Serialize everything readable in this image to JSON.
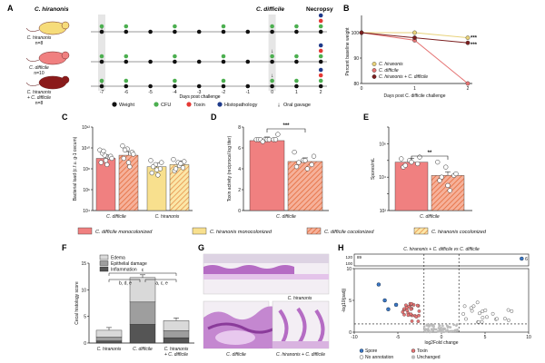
{
  "panels": {
    "A": {
      "letter": "A",
      "species1": "C. hiranonis",
      "species2": "C. difficile",
      "necropsy": "Necropsy",
      "groups": [
        {
          "name": "C. hiranonis",
          "n": "n=8"
        },
        {
          "name": "C. difficile",
          "n": "n=10"
        },
        {
          "name": "C. hiranonis + C. difficile",
          "n": "n=8"
        }
      ],
      "days": [
        "-7",
        "-6",
        "-5",
        "-4",
        "-3",
        "-2",
        "-1",
        "0",
        "1",
        "2"
      ],
      "xlabel": "Days post challenge",
      "legend": [
        "Weight",
        "CFU",
        "Toxin",
        "Histopathology",
        "Oral gavage"
      ],
      "colors": {
        "weight": "#111111",
        "cfu": "#4caf50",
        "toxin": "#e53935",
        "histo": "#1e3a8a"
      }
    },
    "B": {
      "letter": "B",
      "legend": [
        "C. hiranonis",
        "C. difficile",
        "C. hiranonis + C. difficile"
      ],
      "sig": "***"
    },
    "C": {
      "letter": "C"
    },
    "D": {
      "letter": "D",
      "sig": "***"
    },
    "E": {
      "letter": "E",
      "sig": "**"
    },
    "shared_legend": [
      "C. difficile monocolonized",
      "C. hiranonis monocolonized",
      "C. difficile cocolonized",
      "C. hiranonis cocolonized"
    ],
    "F": {
      "letter": "F",
      "legend": [
        "Edema",
        "Epithelial damage",
        "Inflammation"
      ],
      "ylabel": "Cecal histology score",
      "annot_top": "c",
      "annot_left": "b, d, e",
      "annot_right": "a, c, e",
      "groups": [
        "C. hiranonis",
        "C. difficile",
        "C. hiranonis + C. difficile"
      ]
    },
    "G": {
      "letter": "G",
      "captions": [
        "C. hiranonis",
        "C. difficile",
        "C. hiranonis + C. difficile"
      ]
    },
    "H": {
      "letter": "H",
      "title": "C. hiranonis + C. difficile vs C. difficile",
      "ylabel": "-log10(padj)",
      "xlabel": "log2Fold change",
      "yticks_top": [
        "120",
        "100"
      ],
      "axis_break_label": "89",
      "legend": [
        "Spore",
        "Toxin",
        "No annotation",
        "Unchanged"
      ],
      "point_label": "6"
    }
  },
  "chart_data": [
    {
      "panel": "B",
      "type": "line",
      "title": "",
      "xlabel": "Days post C. difficile challenge",
      "ylabel": "Percent baseline weight",
      "x": [
        0,
        1,
        2
      ],
      "xticks": [
        "0",
        "1",
        "2"
      ],
      "ylim": [
        80,
        105
      ],
      "yticks": [
        80,
        90,
        100
      ],
      "series": [
        {
          "name": "C. hiranonis",
          "color": "#e8d27a",
          "values": [
            100,
            100,
            98
          ]
        },
        {
          "name": "C. difficile",
          "color": "#e57373",
          "values": [
            100,
            97,
            80
          ]
        },
        {
          "name": "C. hiranonis + C. difficile",
          "color": "#7b1e1e",
          "values": [
            100,
            98,
            96
          ]
        }
      ]
    },
    {
      "panel": "C",
      "type": "bar",
      "ylabel": "Bacterial load (c.f.u. g-1 cecum)",
      "ylim_log10": [
        4,
        12
      ],
      "yticks": [
        "10⁴",
        "10⁶",
        "10⁸",
        "10¹⁰",
        "10¹²"
      ],
      "group_labels": [
        "C. difficile",
        "C. hiranonis"
      ],
      "series": [
        {
          "name": "C. difficile monocolonized",
          "group": "C. difficile",
          "log10_value": 9.0,
          "points": [
            9.8,
            9.3,
            9.1,
            8.6,
            8.8,
            9.2,
            9.5,
            8.4,
            9.0,
            9.7
          ]
        },
        {
          "name": "C. difficile cocolonized",
          "group": "C. difficile",
          "log10_value": 9.3,
          "points": [
            10.2,
            9.9,
            9.6,
            9.0,
            8.6,
            9.4,
            9.8,
            8.2
          ]
        },
        {
          "name": "C. hiranonis monocolonized",
          "group": "C. hiranonis",
          "log10_value": 8.2,
          "points": [
            8.8,
            8.4,
            8.0,
            7.6,
            7.9,
            8.6,
            8.2,
            7.4
          ]
        },
        {
          "name": "C. hiranonis cocolonized",
          "group": "C. hiranonis",
          "log10_value": 8.4,
          "points": [
            8.9,
            8.6,
            8.1,
            7.8,
            8.3,
            8.7,
            8.0,
            8.5
          ]
        }
      ]
    },
    {
      "panel": "D",
      "type": "bar",
      "ylabel": "Toxin activity (reciprocal log titer)",
      "ylim": [
        0,
        8
      ],
      "yticks": [
        "0",
        "2",
        "4",
        "6",
        "8"
      ],
      "group_label": "C. difficile",
      "series": [
        {
          "name": "C. difficile monocolonized",
          "value": 6.7,
          "points": [
            6.8,
            6.8,
            6.8,
            6.8,
            6.8,
            6.8,
            6.8,
            6.8,
            7.3,
            6.6
          ]
        },
        {
          "name": "C. difficile cocolonized",
          "value": 4.7,
          "points": [
            5.6,
            4.8,
            4.4,
            4.2,
            4.8,
            5.2,
            4.6,
            4.0
          ]
        }
      ]
    },
    {
      "panel": "E",
      "type": "bar",
      "ylabel": "Spores/mL",
      "ylim_log10": [
        2,
        7
      ],
      "yticks": [
        "10²",
        "10³",
        "10⁴",
        "10⁵",
        "10⁶",
        "10⁷"
      ],
      "group_label": "C. difficile",
      "series": [
        {
          "name": "C. difficile monocolonized",
          "log10_value": 4.9,
          "points": [
            5.1,
            5.0,
            4.8,
            4.6,
            4.9,
            5.2,
            4.7
          ]
        },
        {
          "name": "C. difficile cocolonized",
          "log10_value": 4.1,
          "points": [
            4.9,
            4.6,
            4.1,
            3.8,
            3.5,
            4.2,
            4.0,
            3.2
          ]
        }
      ]
    },
    {
      "panel": "F",
      "type": "bar",
      "stacked": true,
      "ylabel": "Cecal histology score",
      "ylim": [
        0,
        15
      ],
      "yticks": [
        "0",
        "5",
        "10",
        "15"
      ],
      "categories": [
        "C. hiranonis",
        "C. difficile",
        "C. hiranonis + C. difficile"
      ],
      "series": [
        {
          "name": "Inflammation",
          "color": "#555555",
          "values": [
            0.4,
            3.5,
            1.0
          ]
        },
        {
          "name": "Epithelial damage",
          "color": "#9e9e9e",
          "values": [
            0.7,
            4.2,
            1.3
          ]
        },
        {
          "name": "Edema",
          "color": "#d9d9d9",
          "values": [
            1.3,
            4.6,
            1.9
          ]
        }
      ]
    },
    {
      "panel": "H",
      "type": "scatter",
      "xlabel": "log2Fold change",
      "ylabel": "-log10(padj)",
      "xlim": [
        -10,
        10
      ],
      "xticks": [
        "-10",
        "-5",
        "0",
        "5",
        "10"
      ],
      "ylim": [
        0,
        10
      ],
      "yticks": [
        "0",
        "5",
        "10"
      ]
    }
  ]
}
